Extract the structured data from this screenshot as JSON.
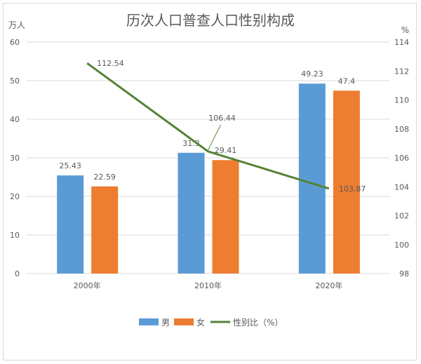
{
  "chart_data": {
    "type": "bar",
    "title": "历次人口普查人口性别构成",
    "ylabel": "万人",
    "y2label": "%",
    "categories": [
      "2000年",
      "2010年",
      "2020年"
    ],
    "ylim": [
      0,
      60
    ],
    "yticks": [
      0,
      10,
      20,
      30,
      40,
      50,
      60
    ],
    "y2lim": [
      98,
      114
    ],
    "y2ticks": [
      98,
      100,
      102,
      104,
      106,
      108,
      110,
      112,
      114
    ],
    "grid": true,
    "legend_position": "bottom",
    "series": [
      {
        "name": "男",
        "type": "bar",
        "axis": "left",
        "color": "#5b9bd5",
        "values": [
          25.43,
          31.3,
          49.23
        ],
        "labels": [
          "25.43",
          "31.3",
          "49.23"
        ]
      },
      {
        "name": "女",
        "type": "bar",
        "axis": "left",
        "color": "#ed7d31",
        "values": [
          22.59,
          29.41,
          47.4
        ],
        "labels": [
          "22.59",
          "29.41",
          "47.4"
        ]
      },
      {
        "name": "性别比（%）",
        "type": "line",
        "axis": "right",
        "color": "#548235",
        "values": [
          112.54,
          106.44,
          103.87
        ],
        "labels": [
          "112.54",
          "106.44",
          "103.87"
        ]
      }
    ]
  }
}
